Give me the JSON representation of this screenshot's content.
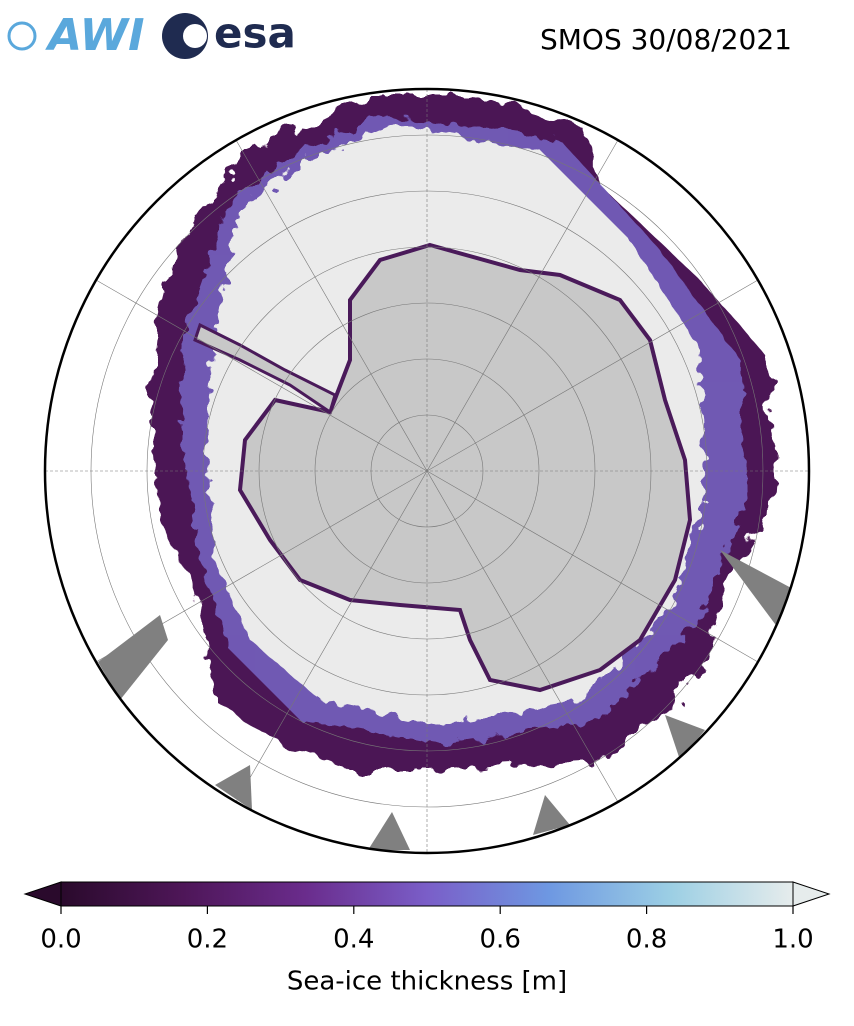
{
  "header": {
    "logos": [
      "AWI",
      "esa"
    ],
    "title": "SMOS 30/08/2021"
  },
  "colorbar": {
    "label": "Sea-ice thickness [m]",
    "lim": [
      0,
      1
    ],
    "ticks": [
      {
        "value": 0,
        "label": "0.0"
      },
      {
        "value": 0.2,
        "label": "0.2"
      },
      {
        "value": 0.4,
        "label": "0.4"
      },
      {
        "value": 0.6,
        "label": "0.6"
      },
      {
        "value": 0.8,
        "label": "0.8"
      },
      {
        "value": 1,
        "label": "1.0"
      }
    ],
    "colors": [
      "#2a0a2c",
      "#4e1658",
      "#6a2c8c",
      "#7a5ec8",
      "#6e98e2",
      "#9ccfe4",
      "#e6ecec"
    ]
  }
}
